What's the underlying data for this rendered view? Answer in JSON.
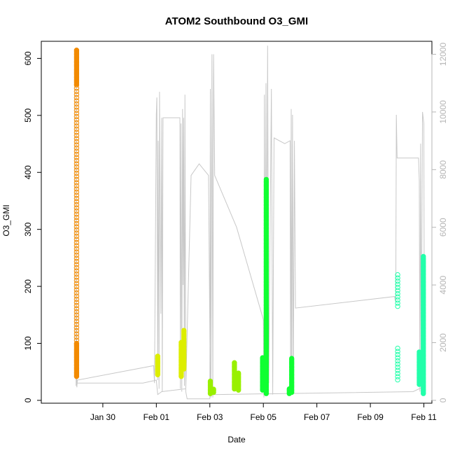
{
  "chart_data": {
    "type": "scatter",
    "title": "ATOM2 Southbound O3_GMI",
    "xlabel": "Date",
    "ylabel": "O3_GMI",
    "x_unit": "days (Jan 29 = 0)",
    "xlim": [
      -1.3,
      13.3
    ],
    "ylim": [
      -5,
      630
    ],
    "x_ticks": [
      {
        "v": 1,
        "label": "Jan 30"
      },
      {
        "v": 3,
        "label": "Feb 01"
      },
      {
        "v": 5,
        "label": "Feb 03"
      },
      {
        "v": 7,
        "label": "Feb 05"
      },
      {
        "v": 9,
        "label": "Feb 07"
      },
      {
        "v": 11,
        "label": "Feb 09"
      },
      {
        "v": 13,
        "label": "Feb 11"
      }
    ],
    "y_ticks": [
      0,
      100,
      200,
      300,
      400,
      500,
      600
    ],
    "y2_ticks": [
      0,
      2000,
      4000,
      6000,
      8000,
      10000,
      12000
    ],
    "y2lim": [
      -100,
      12450
    ],
    "grid": false,
    "series": [
      {
        "color": "#f28a00",
        "filled": true,
        "segments": [
          {
            "x": 0.02,
            "y0": 42,
            "y1": 100
          },
          {
            "x": 0.02,
            "y0": 555,
            "y1": 617
          }
        ]
      },
      {
        "color": "#f28a00",
        "filled": false,
        "segments": [
          {
            "x": 0.02,
            "y0": 100,
            "y1": 555
          }
        ]
      },
      {
        "color": "#ddee00",
        "filled": true,
        "segments": [
          {
            "x": 3.05,
            "y0": 45,
            "y1": 78
          },
          {
            "x": 3.93,
            "y0": 42,
            "y1": 102
          },
          {
            "x": 4.03,
            "y0": 55,
            "y1": 125
          }
        ]
      },
      {
        "color": "#99f000",
        "filled": true,
        "segments": [
          {
            "x": 5.02,
            "y0": 12,
            "y1": 35
          },
          {
            "x": 5.14,
            "y0": 14,
            "y1": 22
          },
          {
            "x": 5.92,
            "y0": 20,
            "y1": 68
          },
          {
            "x": 6.07,
            "y0": 18,
            "y1": 48
          }
        ]
      },
      {
        "color": "#11ff33",
        "filled": true,
        "segments": [
          {
            "x": 6.97,
            "y0": 18,
            "y1": 75
          },
          {
            "x": 7.11,
            "y0": 12,
            "y1": 390
          },
          {
            "x": 7.97,
            "y0": 12,
            "y1": 22
          },
          {
            "x": 8.06,
            "y0": 14,
            "y1": 75
          }
        ]
      },
      {
        "color": "#22ffaa",
        "filled": false,
        "segments": [
          {
            "x": 12.02,
            "y0": 36,
            "y1": 95
          },
          {
            "x": 12.02,
            "y0": 165,
            "y1": 222
          }
        ]
      },
      {
        "color": "#22ffaa",
        "filled": true,
        "segments": [
          {
            "x": 12.83,
            "y0": 28,
            "y1": 85
          },
          {
            "x": 12.98,
            "y0": 12,
            "y1": 255
          }
        ]
      }
    ],
    "altitude_trace": {
      "axis": "y2",
      "points": [
        [
          0.0,
          500
        ],
        [
          0.0,
          12200
        ],
        [
          0.0,
          4000
        ],
        [
          0.03,
          450
        ],
        [
          0.05,
          700
        ],
        [
          2.9,
          1200
        ],
        [
          2.93,
          600
        ],
        [
          3.0,
          9900
        ],
        [
          3.02,
          10500
        ],
        [
          3.05,
          700
        ],
        [
          3.07,
          9000
        ],
        [
          3.1,
          400
        ],
        [
          3.12,
          10700
        ],
        [
          3.15,
          5800
        ],
        [
          3.17,
          3000
        ],
        [
          3.2,
          9800
        ],
        [
          3.22,
          300
        ],
        [
          3.25,
          9800
        ],
        [
          3.6,
          9800
        ],
        [
          3.88,
          9800
        ],
        [
          3.9,
          400
        ],
        [
          3.92,
          9600
        ],
        [
          3.95,
          300
        ],
        [
          3.98,
          10100
        ],
        [
          4.0,
          4000
        ],
        [
          4.02,
          9800
        ],
        [
          4.05,
          500
        ],
        [
          4.07,
          10600
        ],
        [
          4.1,
          300
        ],
        [
          4.15,
          50
        ],
        [
          5.0,
          50
        ],
        [
          5.02,
          10800
        ],
        [
          5.04,
          100
        ],
        [
          5.08,
          12000
        ],
        [
          5.11,
          100
        ],
        [
          5.14,
          12000
        ],
        [
          5.18,
          7800
        ],
        [
          6.0,
          6000
        ],
        [
          7.0,
          2800
        ],
        [
          7.02,
          100
        ],
        [
          7.04,
          10600
        ],
        [
          7.06,
          600
        ],
        [
          7.1,
          11000
        ],
        [
          7.12,
          800
        ],
        [
          7.16,
          12300
        ],
        [
          7.2,
          600
        ],
        [
          7.3,
          10800
        ],
        [
          7.35,
          200
        ],
        [
          7.4,
          9100
        ],
        [
          7.8,
          8900
        ],
        [
          8.0,
          9000
        ],
        [
          8.02,
          200
        ],
        [
          8.04,
          10100
        ],
        [
          8.06,
          200
        ],
        [
          8.09,
          9900
        ],
        [
          8.12,
          300
        ],
        [
          8.16,
          9000
        ],
        [
          8.2,
          3200
        ],
        [
          11.9,
          3600
        ],
        [
          11.95,
          3400
        ],
        [
          11.97,
          9900
        ],
        [
          12.0,
          8400
        ],
        [
          12.8,
          8400
        ],
        [
          12.83,
          7600
        ],
        [
          12.85,
          300
        ],
        [
          12.88,
          8900
        ],
        [
          12.9,
          200
        ],
        [
          12.95,
          10000
        ],
        [
          13.0,
          9600
        ],
        [
          13.02,
          600
        ],
        [
          13.05,
          500
        ],
        [
          12.6,
          300
        ],
        [
          5.3,
          200
        ],
        [
          5.02,
          200
        ],
        [
          4.95,
          7800
        ],
        [
          4.6,
          8200
        ],
        [
          4.3,
          7800
        ],
        [
          4.1,
          400
        ],
        [
          3.2,
          300
        ],
        [
          3.05,
          200
        ],
        [
          3.0,
          700
        ],
        [
          2.5,
          600
        ],
        [
          0.05,
          600
        ]
      ]
    }
  }
}
